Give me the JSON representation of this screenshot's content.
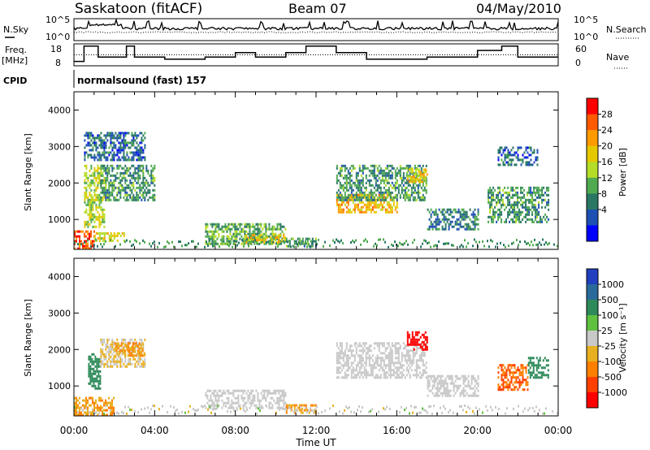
{
  "header": {
    "station": "Saskatoon (fitACF)",
    "beam": "Beam 07",
    "date": "04/May/2010"
  },
  "strips": {
    "nsky_label": "N.Sky",
    "nsearch_label": "N.Search",
    "nsky_ticks": [
      "10^5",
      "10^0"
    ],
    "nsearch_ticks": [
      "10^5",
      "10^0"
    ],
    "freq_label": "Freq.",
    "freq_unit": "[MHz]",
    "freq_ticks": [
      "18",
      "8"
    ],
    "nave_label": "Nave",
    "nave_ticks": [
      "60",
      "0"
    ],
    "cpid_label": "CPID",
    "cpid_value": "normalsound (fast) 157"
  },
  "axes": {
    "ylabel": "Slant Range [km]",
    "y_ticks": [
      "4000",
      "3000",
      "2000",
      "1000"
    ],
    "xlabel": "Time UT",
    "x_ticks": [
      "00:00",
      "04:00",
      "08:00",
      "12:00",
      "16:00",
      "20:00",
      "00:00"
    ]
  },
  "power_scale": {
    "label": "Power [dB]",
    "ticks": [
      "28",
      "24",
      "20",
      "16",
      "12",
      "8",
      "4"
    ],
    "colors": [
      "#ff0000",
      "#ff5a00",
      "#ff9a00",
      "#e6c800",
      "#b4dc28",
      "#50aa50",
      "#2a7864",
      "#1e50b4",
      "#0000ff"
    ]
  },
  "velocity_scale": {
    "label": "Velocity [m s⁻¹]",
    "ticks": [
      "1000",
      "500",
      "100",
      "25",
      "-25",
      "-100",
      "-500",
      "-1000"
    ],
    "colors": [
      "#2040c0",
      "#2a6a9a",
      "#2e8a5a",
      "#60c040",
      "#c8c8c8",
      "#e8b020",
      "#ff8000",
      "#ff4000",
      "#ff0000"
    ]
  },
  "chart_data": {
    "type": "heatmap",
    "xlim": [
      "00:00",
      "24:00"
    ],
    "ylim": [
      180,
      4500
    ],
    "power_regions": [
      {
        "t0": 0.0,
        "t1": 1.0,
        "r0": 200,
        "r1": 700,
        "value": 28
      },
      {
        "t0": 1.0,
        "t1": 2.5,
        "r0": 400,
        "r1": 650,
        "value": 18
      },
      {
        "t0": 0.5,
        "t1": 1.5,
        "r0": 800,
        "r1": 2500,
        "value": 16
      },
      {
        "t0": 1.3,
        "t1": 4.0,
        "r0": 1500,
        "r1": 2500,
        "value": 10
      },
      {
        "t0": 0.5,
        "t1": 3.5,
        "r0": 2600,
        "r1": 3400,
        "value": 6
      },
      {
        "t0": 6.5,
        "t1": 10.5,
        "r0": 300,
        "r1": 900,
        "value": 12
      },
      {
        "t0": 8.5,
        "t1": 10.5,
        "r0": 350,
        "r1": 600,
        "value": 20
      },
      {
        "t0": 10.5,
        "t1": 12.0,
        "r0": 250,
        "r1": 500,
        "value": 10
      },
      {
        "t0": 13.0,
        "t1": 16.0,
        "r0": 1200,
        "r1": 1700,
        "value": 22
      },
      {
        "t0": 13.0,
        "t1": 17.5,
        "r0": 1500,
        "r1": 2500,
        "value": 10
      },
      {
        "t0": 16.5,
        "t1": 17.5,
        "r0": 2000,
        "r1": 2400,
        "value": 20
      },
      {
        "t0": 17.5,
        "t1": 20.0,
        "r0": 700,
        "r1": 1300,
        "value": 8
      },
      {
        "t0": 20.5,
        "t1": 23.5,
        "r0": 900,
        "r1": 1900,
        "value": 10
      },
      {
        "t0": 21.0,
        "t1": 23.0,
        "r0": 2500,
        "r1": 3000,
        "value": 6
      }
    ],
    "velocity_regions": [
      {
        "t0": 0.0,
        "t1": 2.0,
        "r0": 200,
        "r1": 700,
        "value": -100
      },
      {
        "t0": 0.7,
        "t1": 1.3,
        "r0": 900,
        "r1": 1900,
        "value": 100
      },
      {
        "t0": 1.3,
        "t1": 3.5,
        "r0": 1500,
        "r1": 2300,
        "value": -25
      },
      {
        "t0": 2.0,
        "t1": 3.5,
        "r0": 1800,
        "r1": 2200,
        "value": -100
      },
      {
        "t0": 6.5,
        "t1": 10.5,
        "r0": 400,
        "r1": 900,
        "value": 0
      },
      {
        "t0": 10.5,
        "t1": 12.0,
        "r0": 250,
        "r1": 500,
        "value": -100
      },
      {
        "t0": 13.0,
        "t1": 17.5,
        "r0": 1200,
        "r1": 2200,
        "value": 0
      },
      {
        "t0": 16.5,
        "t1": 17.5,
        "r0": 2000,
        "r1": 2500,
        "value": -1000
      },
      {
        "t0": 17.5,
        "t1": 20.0,
        "r0": 700,
        "r1": 1300,
        "value": 0
      },
      {
        "t0": 21.0,
        "t1": 22.5,
        "r0": 900,
        "r1": 1600,
        "value": -500
      },
      {
        "t0": 22.5,
        "t1": 23.5,
        "r0": 1200,
        "r1": 1800,
        "value": 100
      }
    ]
  }
}
